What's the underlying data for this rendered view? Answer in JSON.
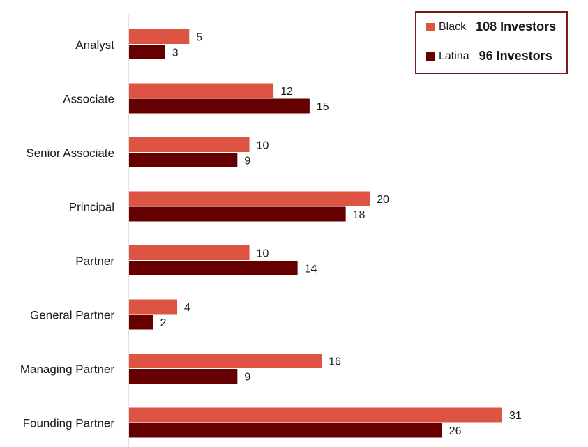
{
  "chart_data": {
    "type": "bar",
    "orientation": "horizontal",
    "categories": [
      "Analyst",
      "Associate",
      "Senior Associate",
      "Principal",
      "Partner",
      "General Partner",
      "Managing Partner",
      "Founding Partner"
    ],
    "series": [
      {
        "name": "Black",
        "values": [
          5,
          12,
          10,
          20,
          10,
          4,
          16,
          31
        ],
        "color": "#de5443"
      },
      {
        "name": "Latina",
        "values": [
          3,
          15,
          9,
          18,
          14,
          2,
          9,
          26
        ],
        "color": "#660000"
      }
    ],
    "title": "",
    "xlabel": "",
    "ylabel": "",
    "xlim": [
      0,
      31
    ],
    "grid": false,
    "legend_placement": "top-right"
  },
  "legend": {
    "items": [
      {
        "name": "Black",
        "count": "108 Investors",
        "color": "#de5443"
      },
      {
        "name": "Latina",
        "count": "96 Investors",
        "color": "#660000"
      }
    ]
  }
}
